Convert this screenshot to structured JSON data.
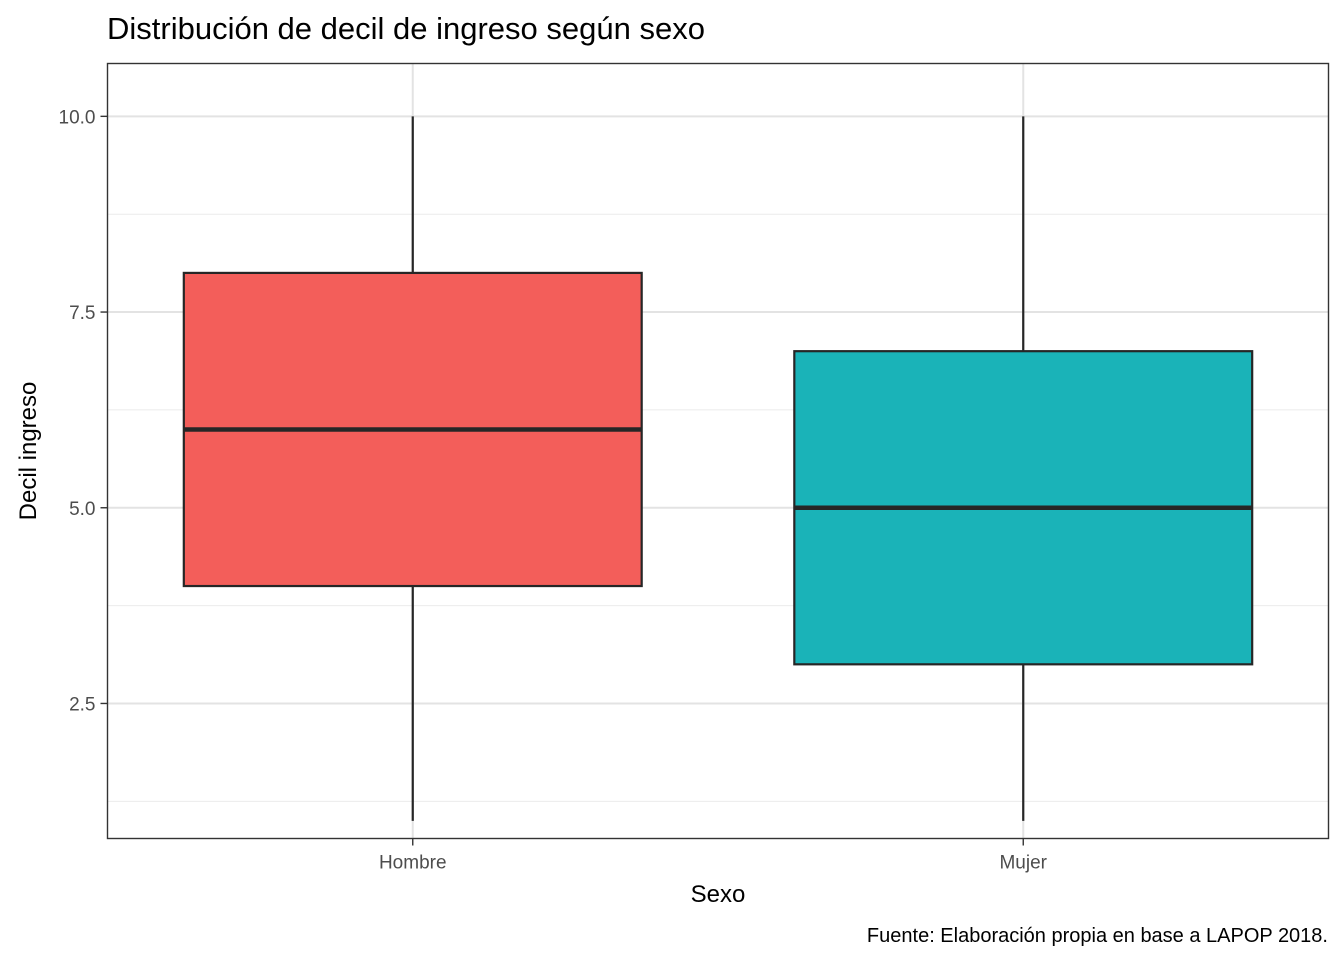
{
  "chart_data": {
    "type": "boxplot",
    "title": "Distribución de decil de ingreso según sexo",
    "xlabel": "Sexo",
    "ylabel": "Decil ingreso",
    "caption": "Fuente: Elaboración propia en base a LAPOP 2018.",
    "ylim": [
      0.775,
      10.675
    ],
    "yticks": [
      2.5,
      5.0,
      7.5,
      10.0
    ],
    "ytick_labels": [
      "2.5",
      "5.0",
      "7.5",
      "10.0"
    ],
    "grid": true,
    "legend": "none",
    "categories": [
      "Hombre",
      "Mujer"
    ],
    "boxes": [
      {
        "category": "Hombre",
        "min": 1,
        "q1": 4,
        "median": 6,
        "q3": 8,
        "max": 10,
        "color": "#F35E5A"
      },
      {
        "category": "Mujer",
        "min": 1,
        "q1": 3,
        "median": 5,
        "q3": 7,
        "max": 10,
        "color": "#1AB3B8"
      }
    ]
  }
}
